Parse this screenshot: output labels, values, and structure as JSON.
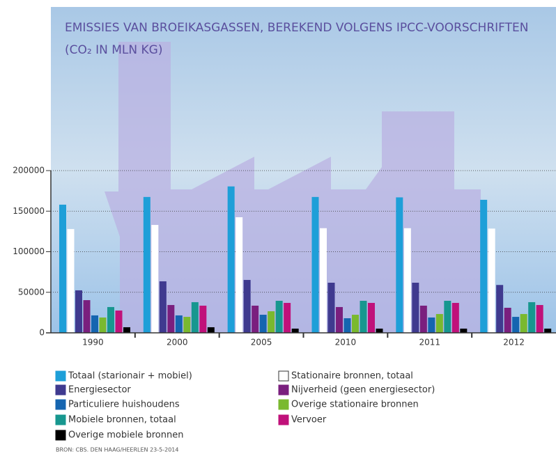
{
  "chart_data": {
    "type": "bar",
    "title": "EMISSIES VAN BROEIKASGASSEN, BEREKEND VOLGENS IPCC-VOORSCHRIFTEN",
    "subtitle": "(CO₂ IN MLN KG)",
    "source": "BRON: CBS. DEN HAAG/HEERLEN 23-5-2014",
    "categories": [
      "1990",
      "2000",
      "2005",
      "2010",
      "2011",
      "2012"
    ],
    "ylim": [
      0,
      200000
    ],
    "yticks": [
      0,
      50000,
      100000,
      150000,
      200000
    ],
    "grid": true,
    "series": [
      {
        "name": "Totaal (starionair + mobiel)",
        "color": "#1e9fd8",
        "values": [
          158000,
          167500,
          180500,
          167500,
          167000,
          164000
        ]
      },
      {
        "name": "Stationaire bronnen, totaal",
        "color": "#ffffff",
        "values": [
          128000,
          133000,
          142500,
          129000,
          129000,
          128500
        ]
      },
      {
        "name": "Energiesector",
        "color": "#3f3a8f",
        "values": [
          52400,
          63500,
          65200,
          61800,
          61800,
          59000
        ]
      },
      {
        "name": "Nijverheid (geen energiesector)",
        "color": "#7a1f7e",
        "values": [
          40300,
          34300,
          33500,
          31800,
          33500,
          30900
        ]
      },
      {
        "name": "Particuliere huishoudens",
        "color": "#1565b0",
        "values": [
          21500,
          21500,
          22300,
          18000,
          18900,
          19700
        ]
      },
      {
        "name": "Overige stationaire bronnen",
        "color": "#7ab92f",
        "values": [
          18900,
          19700,
          26600,
          22300,
          23200,
          23200
        ]
      },
      {
        "name": "Mobiele bronnen, totaal",
        "color": "#17978f",
        "values": [
          31800,
          37800,
          39500,
          39500,
          39500,
          37800
        ]
      },
      {
        "name": "Vervoer",
        "color": "#c0117a",
        "values": [
          27500,
          33500,
          36900,
          36900,
          36900,
          34300
        ]
      },
      {
        "name": "Overige mobiele bronnen",
        "color": "#000000",
        "values": [
          6900,
          6900,
          5200,
          5200,
          5200,
          5200
        ]
      }
    ]
  }
}
